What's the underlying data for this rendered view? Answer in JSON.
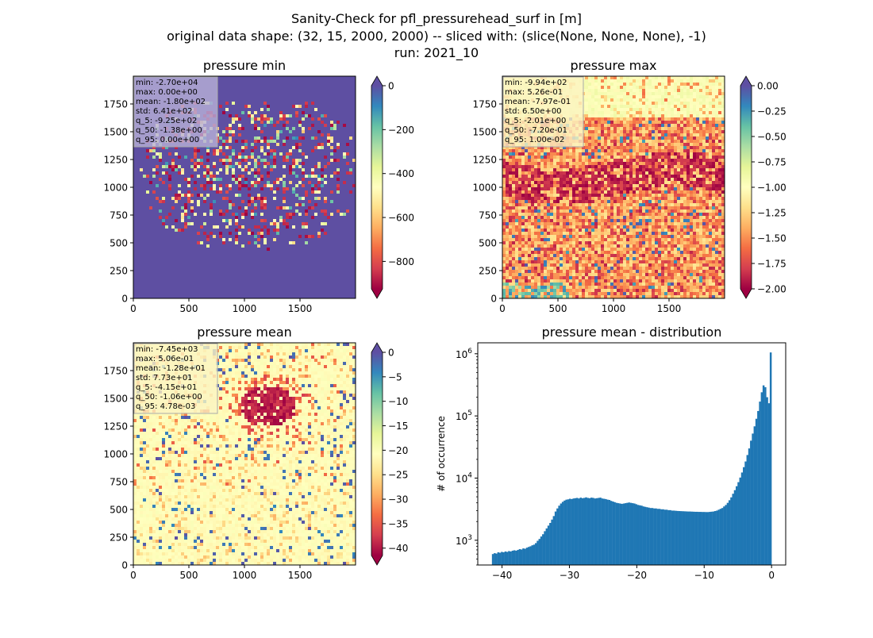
{
  "figure": {
    "title_lines": [
      "Sanity-Check for pfl_pressurehead_surf in [m]",
      "original data shape: (32, 15, 2000, 2000) -- sliced with: (slice(None, None, None), -1)",
      "run: 2021_10"
    ]
  },
  "chart_data": [
    {
      "type": "heatmap",
      "title": "pressure min",
      "colormap": "Spectral",
      "xlim": [
        0,
        2000
      ],
      "ylim": [
        0,
        2000
      ],
      "xticks": [
        "0",
        "500",
        "1000",
        "1500"
      ],
      "yticks": [
        "0",
        "250",
        "500",
        "750",
        "1000",
        "1250",
        "1500",
        "1750"
      ],
      "color_range": [
        -925,
        0
      ],
      "colorbar_ticks": [
        "0",
        "−200",
        "−400",
        "−600",
        "−800"
      ],
      "colorbar_extend": "both",
      "stats_box_color": "#b8b0d8",
      "stats": [
        "min: -2.70e+04",
        "max: 0.00e+00",
        "mean: -1.80e+02",
        "std: 6.41e+02",
        "q_5: -9.25e+02",
        "q_50: -1.38e+00",
        "q_95: 0.00e+00"
      ]
    },
    {
      "type": "heatmap",
      "title": "pressure max",
      "colormap": "Spectral",
      "xlim": [
        0,
        2000
      ],
      "ylim": [
        0,
        2000
      ],
      "xticks": [
        "0",
        "500",
        "1000",
        "1500"
      ],
      "yticks": [
        "0",
        "250",
        "500",
        "750",
        "1000",
        "1250",
        "1500",
        "1750"
      ],
      "color_range": [
        -2.0,
        0.0
      ],
      "colorbar_ticks": [
        "0.00",
        "−0.25",
        "−0.50",
        "−0.75",
        "−1.00",
        "−1.25",
        "−1.50",
        "−1.75",
        "−2.00"
      ],
      "colorbar_extend": "both",
      "stats_box_color": "#fbf4c2",
      "stats": [
        "min: -9.94e+02",
        "max: 5.26e-01",
        "mean: -7.97e-01",
        "std: 6.50e+00",
        "q_5: -2.01e+00",
        "q_50: -7.20e-01",
        "q_95: 1.00e-02"
      ]
    },
    {
      "type": "heatmap",
      "title": "pressure mean",
      "colormap": "Spectral",
      "xlim": [
        0,
        2000
      ],
      "ylim": [
        0,
        2000
      ],
      "xticks": [
        "0",
        "500",
        "1000",
        "1500"
      ],
      "yticks": [
        "0",
        "250",
        "500",
        "750",
        "1000",
        "1250",
        "1500",
        "1750"
      ],
      "color_range": [
        -41.5,
        0
      ],
      "colorbar_ticks": [
        "0",
        "−5",
        "−10",
        "−15",
        "−20",
        "−25",
        "−30",
        "−35",
        "−40"
      ],
      "colorbar_extend": "both",
      "stats_box_color": "#fbf4c2",
      "stats": [
        "min: -7.45e+03",
        "max: 5.06e-01",
        "mean: -1.28e+01",
        "std: 7.73e+01",
        "q_5: -4.15e+01",
        "q_50: -1.06e+00",
        "q_95: 4.78e-03"
      ]
    },
    {
      "type": "bar",
      "title": "pressure mean - distribution",
      "ylabel": "# of occurrence",
      "yscale": "log",
      "bar_color": "#1f77b4",
      "xlim": [
        -43.6,
        2.1
      ],
      "ylim": [
        400,
        1500000
      ],
      "xticks": [
        -40,
        -30,
        -20,
        -10,
        0
      ],
      "xtick_labels": [
        "−40",
        "−30",
        "−20",
        "−10",
        "0"
      ],
      "yticks": [
        1000,
        10000,
        100000,
        1000000
      ],
      "ytick_labels": [
        "10^3",
        "10^4",
        "10^5",
        "10^6"
      ],
      "bin_range": [
        -41.5,
        0
      ],
      "counts": [
        600,
        620,
        610,
        640,
        630,
        650,
        640,
        660,
        650,
        670,
        660,
        680,
        690,
        680,
        700,
        720,
        710,
        740,
        730,
        760,
        780,
        800,
        830,
        850,
        900,
        980,
        1050,
        1150,
        1250,
        1400,
        1550,
        1720,
        1900,
        2150,
        2450,
        2900,
        3250,
        3600,
        3900,
        4150,
        4350,
        4500,
        4550,
        4650,
        4600,
        4700,
        4750,
        4800,
        4700,
        4850,
        4750,
        4800,
        4900,
        4800,
        4750,
        4850,
        4800,
        4700,
        4750,
        4800,
        4850,
        4700,
        4650,
        4600,
        4500,
        4450,
        4300,
        4200,
        4100,
        4000,
        3950,
        3900,
        3850,
        3900,
        3950,
        4000,
        4050,
        4000,
        3950,
        3900,
        3800,
        3700,
        3650,
        3600,
        3500,
        3450,
        3400,
        3350,
        3300,
        3300,
        3250,
        3250,
        3200,
        3200,
        3150,
        3150,
        3100,
        3100,
        3050,
        3050,
        3000,
        3000,
        2980,
        2960,
        2950,
        2940,
        2930,
        2920,
        2910,
        2900,
        2900,
        2890,
        2880,
        2870,
        2870,
        2860,
        2860,
        2850,
        2850,
        2840,
        2840,
        2860,
        2880,
        2900,
        2950,
        3000,
        3100,
        3200,
        3300,
        3500,
        3700,
        4000,
        4400,
        4900,
        5600,
        6400,
        7400,
        8600,
        10200,
        12300,
        15000,
        18500,
        23500,
        30000,
        40000,
        52000,
        68000,
        90000,
        120000,
        170000,
        240000,
        310000,
        290000,
        200000,
        160000,
        1050000
      ]
    }
  ]
}
